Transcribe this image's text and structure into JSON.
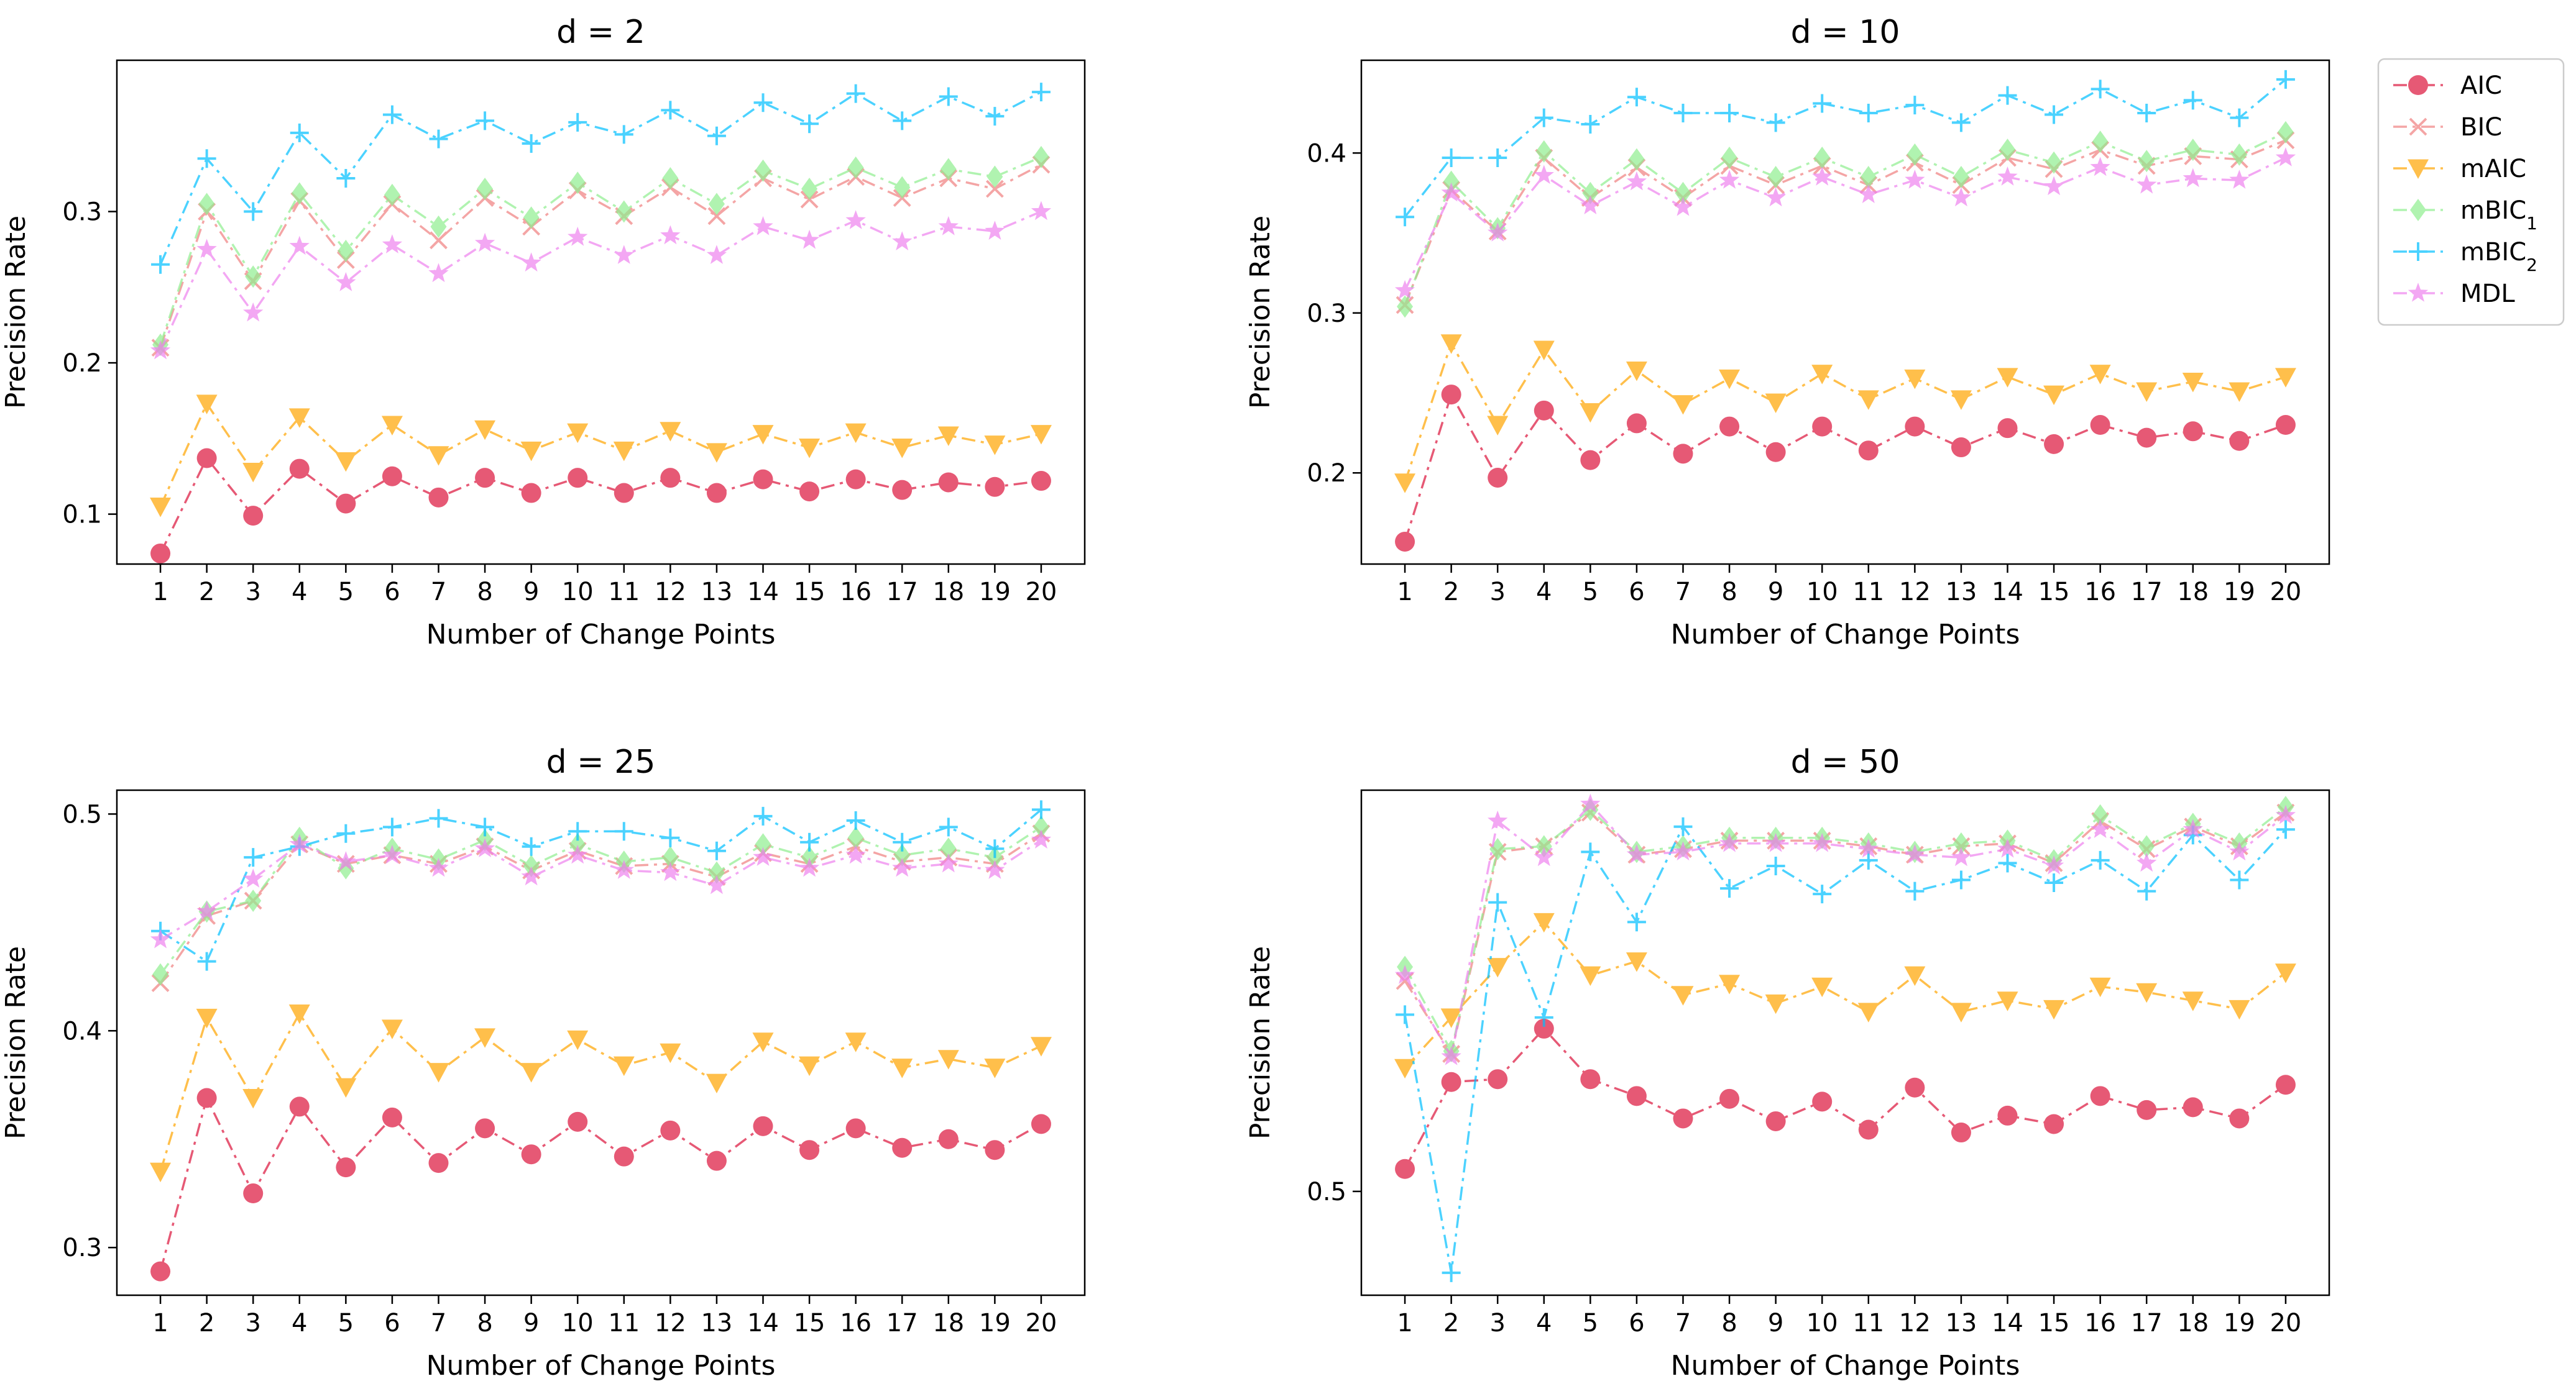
{
  "legend": {
    "placement": "top-right, outside plots",
    "entries": [
      {
        "key": "AIC",
        "label": "AIC",
        "sub": ""
      },
      {
        "key": "BIC",
        "label": "BIC",
        "sub": ""
      },
      {
        "key": "mAIC",
        "label": "mAIC",
        "sub": ""
      },
      {
        "key": "mBIC1",
        "label": "mBIC",
        "sub": "1"
      },
      {
        "key": "mBIC2",
        "label": "mBIC",
        "sub": "2"
      },
      {
        "key": "MDL",
        "label": "MDL",
        "sub": ""
      }
    ]
  },
  "series_styles": {
    "AIC": {
      "color": "#DC143C",
      "marker": "circle"
    },
    "BIC": {
      "color": "#F08080",
      "marker": "x"
    },
    "mAIC": {
      "color": "#FFA500",
      "marker": "triangle-down"
    },
    "mBIC1": {
      "color": "#90EE90",
      "marker": "diamond"
    },
    "mBIC2": {
      "color": "#00BFFF",
      "marker": "plus"
    },
    "MDL": {
      "color": "#EE82EE",
      "marker": "star"
    }
  },
  "chart_data": [
    {
      "type": "line",
      "title": "d = 2",
      "xlabel": "Number of Change Points",
      "ylabel": "Precision Rate",
      "x": [
        1,
        2,
        3,
        4,
        5,
        6,
        7,
        8,
        9,
        10,
        11,
        12,
        13,
        14,
        15,
        16,
        17,
        18,
        19,
        20
      ],
      "ylim": [
        0.067,
        0.4
      ],
      "yticks": [
        0.1,
        0.2,
        0.3
      ],
      "ytick_labels": [
        "0.1",
        "0.2",
        "0.3"
      ],
      "series": [
        {
          "key": "AIC",
          "values": [
            0.074,
            0.137,
            0.099,
            0.13,
            0.107,
            0.125,
            0.111,
            0.124,
            0.114,
            0.124,
            0.114,
            0.124,
            0.114,
            0.123,
            0.115,
            0.123,
            0.116,
            0.121,
            0.118,
            0.122
          ]
        },
        {
          "key": "BIC",
          "values": [
            0.21,
            0.3,
            0.254,
            0.307,
            0.268,
            0.305,
            0.281,
            0.309,
            0.29,
            0.314,
            0.297,
            0.316,
            0.297,
            0.322,
            0.308,
            0.323,
            0.309,
            0.322,
            0.315,
            0.331
          ]
        },
        {
          "key": "mAIC",
          "values": [
            0.105,
            0.173,
            0.128,
            0.164,
            0.135,
            0.159,
            0.139,
            0.156,
            0.142,
            0.154,
            0.142,
            0.155,
            0.141,
            0.153,
            0.144,
            0.154,
            0.144,
            0.152,
            0.146,
            0.153
          ]
        },
        {
          "key": "mBIC1",
          "values": [
            0.212,
            0.305,
            0.257,
            0.312,
            0.274,
            0.311,
            0.29,
            0.315,
            0.296,
            0.319,
            0.3,
            0.322,
            0.305,
            0.327,
            0.315,
            0.329,
            0.316,
            0.328,
            0.323,
            0.336
          ]
        },
        {
          "key": "mBIC2",
          "values": [
            0.265,
            0.335,
            0.3,
            0.352,
            0.322,
            0.364,
            0.348,
            0.36,
            0.345,
            0.359,
            0.351,
            0.367,
            0.35,
            0.372,
            0.358,
            0.378,
            0.36,
            0.376,
            0.363,
            0.379
          ]
        },
        {
          "key": "MDL",
          "values": [
            0.208,
            0.275,
            0.233,
            0.277,
            0.253,
            0.278,
            0.259,
            0.279,
            0.266,
            0.283,
            0.271,
            0.284,
            0.271,
            0.29,
            0.281,
            0.294,
            0.28,
            0.29,
            0.287,
            0.3
          ]
        }
      ]
    },
    {
      "type": "line",
      "title": "d = 10",
      "xlabel": "Number of Change Points",
      "ylabel": "Precision Rate",
      "x": [
        1,
        2,
        3,
        4,
        5,
        6,
        7,
        8,
        9,
        10,
        11,
        12,
        13,
        14,
        15,
        16,
        17,
        18,
        19,
        20
      ],
      "ylim": [
        0.143,
        0.458
      ],
      "yticks": [
        0.2,
        0.3,
        0.4
      ],
      "ytick_labels": [
        "0.2",
        "0.3",
        "0.4"
      ],
      "series": [
        {
          "key": "AIC",
          "values": [
            0.157,
            0.249,
            0.197,
            0.239,
            0.208,
            0.231,
            0.212,
            0.229,
            0.213,
            0.229,
            0.214,
            0.229,
            0.216,
            0.228,
            0.218,
            0.23,
            0.222,
            0.226,
            0.22,
            0.23
          ]
        },
        {
          "key": "BIC",
          "values": [
            0.305,
            0.377,
            0.351,
            0.397,
            0.372,
            0.391,
            0.372,
            0.392,
            0.38,
            0.392,
            0.38,
            0.394,
            0.38,
            0.397,
            0.39,
            0.402,
            0.392,
            0.398,
            0.396,
            0.408
          ]
        },
        {
          "key": "mAIC",
          "values": [
            0.194,
            0.281,
            0.23,
            0.277,
            0.238,
            0.264,
            0.243,
            0.259,
            0.244,
            0.262,
            0.246,
            0.259,
            0.246,
            0.26,
            0.249,
            0.262,
            0.251,
            0.257,
            0.251,
            0.26
          ]
        },
        {
          "key": "mBIC1",
          "values": [
            0.304,
            0.382,
            0.353,
            0.401,
            0.375,
            0.396,
            0.375,
            0.397,
            0.385,
            0.397,
            0.385,
            0.399,
            0.385,
            0.402,
            0.394,
            0.407,
            0.395,
            0.402,
            0.399,
            0.413
          ]
        },
        {
          "key": "mBIC2",
          "values": [
            0.36,
            0.397,
            0.397,
            0.422,
            0.418,
            0.435,
            0.425,
            0.425,
            0.419,
            0.431,
            0.425,
            0.43,
            0.419,
            0.436,
            0.424,
            0.44,
            0.425,
            0.433,
            0.422,
            0.446
          ]
        },
        {
          "key": "MDL",
          "values": [
            0.314,
            0.375,
            0.35,
            0.386,
            0.367,
            0.382,
            0.366,
            0.383,
            0.372,
            0.385,
            0.374,
            0.383,
            0.372,
            0.385,
            0.379,
            0.391,
            0.38,
            0.384,
            0.383,
            0.397
          ]
        }
      ]
    },
    {
      "type": "line",
      "title": "d = 25",
      "xlabel": "Number of Change Points",
      "ylabel": "Precision Rate",
      "x": [
        1,
        2,
        3,
        4,
        5,
        6,
        7,
        8,
        9,
        10,
        11,
        12,
        13,
        14,
        15,
        16,
        17,
        18,
        19,
        20
      ],
      "ylim": [
        0.278,
        0.511
      ],
      "yticks": [
        0.3,
        0.4,
        0.5
      ],
      "ytick_labels": [
        "0.3",
        "0.4",
        "0.5"
      ],
      "series": [
        {
          "key": "AIC",
          "values": [
            0.289,
            0.369,
            0.325,
            0.365,
            0.337,
            0.36,
            0.339,
            0.355,
            0.343,
            0.358,
            0.342,
            0.354,
            0.34,
            0.356,
            0.345,
            0.355,
            0.346,
            0.35,
            0.345,
            0.357
          ]
        },
        {
          "key": "BIC",
          "values": [
            0.422,
            0.453,
            0.46,
            0.486,
            0.477,
            0.481,
            0.477,
            0.485,
            0.474,
            0.483,
            0.476,
            0.477,
            0.471,
            0.482,
            0.477,
            0.485,
            0.478,
            0.48,
            0.477,
            0.491
          ]
        },
        {
          "key": "mAIC",
          "values": [
            0.335,
            0.406,
            0.369,
            0.408,
            0.374,
            0.401,
            0.381,
            0.397,
            0.381,
            0.396,
            0.384,
            0.39,
            0.376,
            0.395,
            0.384,
            0.395,
            0.383,
            0.387,
            0.383,
            0.393
          ]
        },
        {
          "key": "mBIC1",
          "values": [
            0.426,
            0.455,
            0.46,
            0.489,
            0.475,
            0.484,
            0.479,
            0.488,
            0.476,
            0.486,
            0.478,
            0.48,
            0.473,
            0.486,
            0.48,
            0.489,
            0.481,
            0.484,
            0.48,
            0.494
          ]
        },
        {
          "key": "mBIC2",
          "values": [
            0.446,
            0.432,
            0.48,
            0.485,
            0.491,
            0.494,
            0.498,
            0.494,
            0.485,
            0.492,
            0.492,
            0.489,
            0.483,
            0.499,
            0.487,
            0.497,
            0.487,
            0.494,
            0.484,
            0.502
          ]
        },
        {
          "key": "MDL",
          "values": [
            0.442,
            0.455,
            0.47,
            0.486,
            0.478,
            0.481,
            0.475,
            0.484,
            0.471,
            0.481,
            0.474,
            0.473,
            0.467,
            0.48,
            0.475,
            0.481,
            0.475,
            0.477,
            0.474,
            0.488
          ]
        }
      ]
    },
    {
      "type": "line",
      "title": "d = 50",
      "xlabel": "Number of Change Points",
      "ylabel": "Precision Rate",
      "x": [
        1,
        2,
        3,
        4,
        5,
        6,
        7,
        8,
        9,
        10,
        11,
        12,
        13,
        14,
        15,
        16,
        17,
        18,
        19,
        20
      ],
      "ylim": [
        0.4815,
        0.5715
      ],
      "yticks": [
        0.5
      ],
      "ytick_labels": [
        "0.5"
      ],
      "series": [
        {
          "key": "AIC",
          "values": [
            0.504,
            0.5195,
            0.52,
            0.529,
            0.52,
            0.517,
            0.513,
            0.5165,
            0.5125,
            0.516,
            0.511,
            0.5185,
            0.5105,
            0.5135,
            0.512,
            0.517,
            0.5145,
            0.515,
            0.513,
            0.519
          ]
        },
        {
          "key": "BIC",
          "values": [
            0.5375,
            0.5245,
            0.5605,
            0.5615,
            0.5675,
            0.56,
            0.561,
            0.5625,
            0.5625,
            0.5625,
            0.5615,
            0.56,
            0.5615,
            0.562,
            0.5585,
            0.566,
            0.561,
            0.565,
            0.5615,
            0.5675
          ]
        },
        {
          "key": "mAIC",
          "values": [
            0.522,
            0.531,
            0.54,
            0.548,
            0.5385,
            0.541,
            0.535,
            0.537,
            0.5335,
            0.5365,
            0.532,
            0.5385,
            0.532,
            0.534,
            0.5325,
            0.5365,
            0.5355,
            0.534,
            0.5325,
            0.539
          ]
        },
        {
          "key": "mBIC1",
          "values": [
            0.54,
            0.525,
            0.561,
            0.5615,
            0.568,
            0.5605,
            0.5615,
            0.563,
            0.563,
            0.563,
            0.562,
            0.5605,
            0.562,
            0.5625,
            0.559,
            0.567,
            0.5615,
            0.5655,
            0.562,
            0.5685
          ]
        },
        {
          "key": "mBIC2",
          "values": [
            0.5315,
            0.4855,
            0.5515,
            0.531,
            0.5605,
            0.548,
            0.565,
            0.554,
            0.558,
            0.553,
            0.559,
            0.5535,
            0.5555,
            0.5585,
            0.555,
            0.559,
            0.5535,
            0.5635,
            0.5555,
            0.5645
          ]
        },
        {
          "key": "MDL",
          "values": [
            0.5385,
            0.524,
            0.566,
            0.5595,
            0.569,
            0.56,
            0.5605,
            0.562,
            0.562,
            0.562,
            0.561,
            0.56,
            0.5595,
            0.561,
            0.558,
            0.5645,
            0.5585,
            0.5645,
            0.5605,
            0.567
          ]
        }
      ]
    }
  ]
}
